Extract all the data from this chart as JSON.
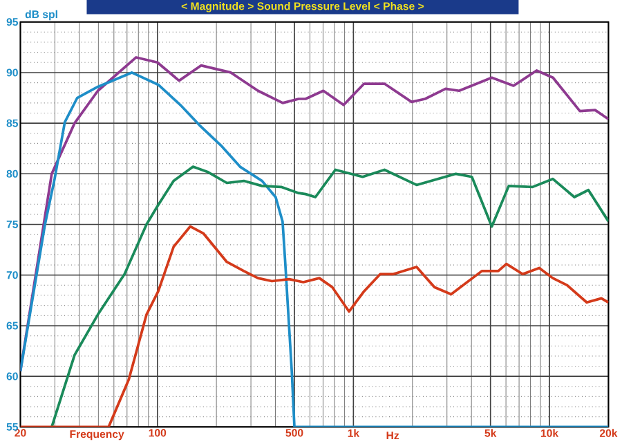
{
  "chart_data": {
    "type": "line",
    "title": "< Magnitude >   Sound Pressure Level   < Phase >",
    "xlabel": "Frequency",
    "ylabel": "dB spl",
    "annotations": [
      "Hz"
    ],
    "log": "x",
    "grid": true,
    "xlim": [
      20,
      20000
    ],
    "ylim": [
      55,
      95
    ],
    "xticks": [
      20,
      100,
      500,
      {
        "value": 1000,
        "label": "1k"
      },
      {
        "value": 5000,
        "label": "5k"
      },
      {
        "value": 10000,
        "label": "10k"
      },
      {
        "value": 20000,
        "label": "20k"
      }
    ],
    "yticks": [
      55,
      60,
      65,
      70,
      75,
      80,
      85,
      90,
      95
    ],
    "series": [
      {
        "color": "#8e3a90",
        "x": [
          20,
          28.9,
          37.8,
          49.7,
          77.9,
          100,
          129,
          167,
          237,
          326,
          436,
          525,
          570,
          702,
          891,
          1133,
          1440,
          1980,
          2320,
          2950,
          3460,
          5080,
          6560,
          8600,
          10420,
          14300,
          17100,
          20000
        ],
        "values": [
          60.5,
          80,
          85,
          88.2,
          91.5,
          91,
          89.2,
          90.7,
          90,
          88.2,
          87,
          87.4,
          87.4,
          88.2,
          86.8,
          88.9,
          88.9,
          87.1,
          87.4,
          88.4,
          88.2,
          89.5,
          88.7,
          90.2,
          89.5,
          86.2,
          86.3,
          85.4
        ]
      },
      {
        "color": "#1e8ec8",
        "x": [
          20,
          26.7,
          29.9,
          33.7,
          39,
          49.7,
          74,
          101,
          131,
          164,
          211,
          264,
          342,
          401,
          435,
          448,
          485,
          500,
          20000
        ],
        "values": [
          60.5,
          75,
          79.5,
          85.1,
          87.5,
          88.6,
          90,
          88.8,
          86.8,
          84.8,
          82.8,
          80.7,
          79.3,
          77.7,
          75.3,
          71.5,
          60.4,
          55,
          55
        ]
      },
      {
        "color": "#1a8a5a",
        "x": [
          28.9,
          37.8,
          49.7,
          68,
          88,
          100,
          121,
          152,
          180,
          226,
          276,
          342,
          428,
          525,
          570,
          640,
          809,
          1114,
          1440,
          2100,
          3330,
          4020,
          5080,
          6200,
          8200,
          10400,
          13400,
          15800,
          20000
        ],
        "values": [
          55,
          62.1,
          66.1,
          70.1,
          75,
          76.8,
          79.3,
          80.7,
          80.2,
          79.1,
          79.3,
          78.8,
          78.7,
          78.1,
          78,
          77.7,
          80.4,
          79.7,
          80.4,
          78.9,
          80,
          79.7,
          74.8,
          78.8,
          78.7,
          79.5,
          77.7,
          78.4,
          75.3
        ]
      },
      {
        "color": "#d43a1a",
        "x": [
          20,
          56.4,
          71.5,
          88,
          101,
          121,
          147,
          172,
          226,
          276,
          326,
          384,
          470,
          555,
          670,
          780,
          950,
          1133,
          1370,
          1600,
          2100,
          2590,
          3150,
          4520,
          5480,
          6030,
          7300,
          8870,
          10400,
          12300,
          15500,
          18400,
          20000
        ],
        "values": [
          55,
          55,
          59.7,
          66.1,
          68.4,
          72.8,
          74.8,
          74.1,
          71.3,
          70.4,
          69.7,
          69.4,
          69.6,
          69.3,
          69.7,
          68.8,
          66.4,
          68.4,
          70.1,
          70.1,
          70.8,
          68.8,
          68.1,
          70.4,
          70.4,
          71.1,
          70.1,
          70.7,
          69.7,
          69,
          67.3,
          67.7,
          67.3
        ]
      }
    ]
  }
}
